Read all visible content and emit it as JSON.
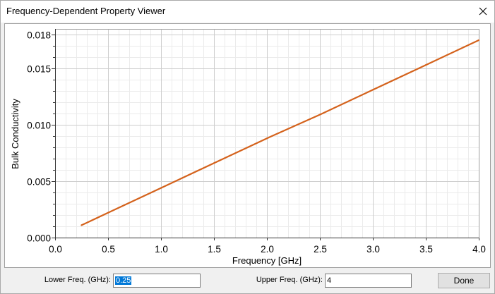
{
  "window": {
    "title": "Frequency-Dependent Property Viewer",
    "close_icon": "close-icon"
  },
  "chart_data": {
    "type": "line",
    "xlabel": "Frequency [GHz]",
    "ylabel": "Bulk Conductivity",
    "xlim": [
      0,
      4
    ],
    "ylim": [
      0,
      0.0185
    ],
    "x_ticks": [
      {
        "value": 0.0,
        "label": "0.0"
      },
      {
        "value": 0.5,
        "label": "0.5"
      },
      {
        "value": 1.0,
        "label": "1.0"
      },
      {
        "value": 1.5,
        "label": "1.5"
      },
      {
        "value": 2.0,
        "label": "2.0"
      },
      {
        "value": 2.5,
        "label": "2.5"
      },
      {
        "value": 3.0,
        "label": "3.0"
      },
      {
        "value": 3.5,
        "label": "3.5"
      },
      {
        "value": 4.0,
        "label": "4.0"
      }
    ],
    "y_ticks": [
      {
        "value": 0.0,
        "label": "0.000"
      },
      {
        "value": 0.005,
        "label": "0.005"
      },
      {
        "value": 0.01,
        "label": "0.010"
      },
      {
        "value": 0.015,
        "label": "0.015"
      },
      {
        "value": 0.018,
        "label": "0.018"
      }
    ],
    "grid": true,
    "minor_grid": {
      "x": 0.1,
      "y": 0.001
    },
    "legend": "none",
    "series": [
      {
        "color": "#d4621c",
        "x": [
          0.25,
          0.5,
          1.0,
          1.5,
          2.0,
          2.5,
          3.0,
          3.5,
          4.0
        ],
        "y": [
          0.0011,
          0.0022,
          0.0044,
          0.0066,
          0.0088,
          0.0109,
          0.0131,
          0.0153,
          0.0175
        ]
      }
    ]
  },
  "controls": {
    "lower_freq": {
      "label": "Lower Freq. (GHz):",
      "value": "0.25",
      "selected": true
    },
    "upper_freq": {
      "label": "Upper Freq. (GHz):",
      "value": "4"
    },
    "done_label": "Done"
  }
}
